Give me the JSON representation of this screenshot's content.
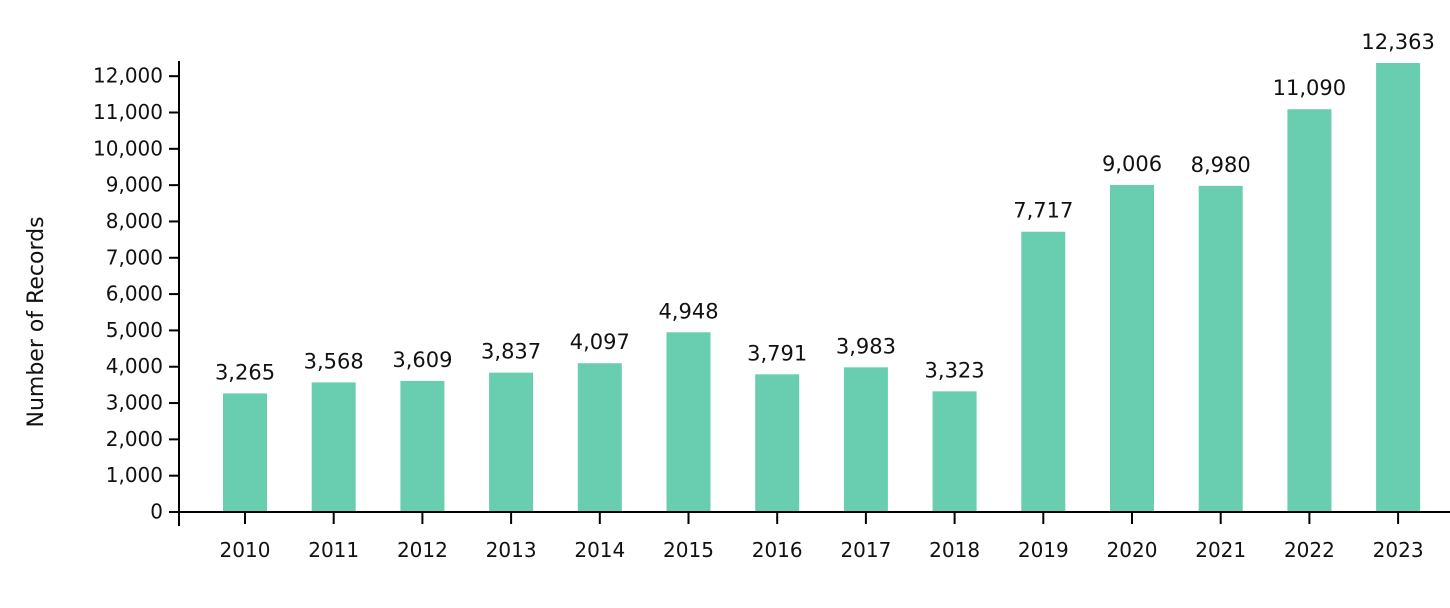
{
  "chart_data": {
    "type": "bar",
    "title": "",
    "xlabel": "",
    "ylabel": "Number of Records",
    "categories": [
      "2010",
      "2011",
      "2012",
      "2013",
      "2014",
      "2015",
      "2016",
      "2017",
      "2018",
      "2019",
      "2020",
      "2021",
      "2022",
      "2023"
    ],
    "values": [
      3265,
      3568,
      3609,
      3837,
      4097,
      4948,
      3791,
      3983,
      3323,
      7717,
      9006,
      8980,
      11090,
      12363
    ],
    "data_labels": [
      "3,265",
      "3,568",
      "3,609",
      "3,837",
      "4,097",
      "4,948",
      "3,791",
      "3,983",
      "3,323",
      "7,717",
      "9,006",
      "8,980",
      "11,090",
      "12,363"
    ],
    "yticks": [
      0,
      1000,
      2000,
      3000,
      4000,
      5000,
      6000,
      7000,
      8000,
      9000,
      10000,
      11000,
      12000
    ],
    "ytick_labels": [
      "0",
      "1,000",
      "2,000",
      "3,000",
      "4,000",
      "5,000",
      "6,000",
      "7,000",
      "8,000",
      "9,000",
      "10,000",
      "11,000",
      "12,000"
    ],
    "ylim": [
      0,
      12363
    ],
    "grid": false,
    "bar_color": "#69cdb0"
  }
}
